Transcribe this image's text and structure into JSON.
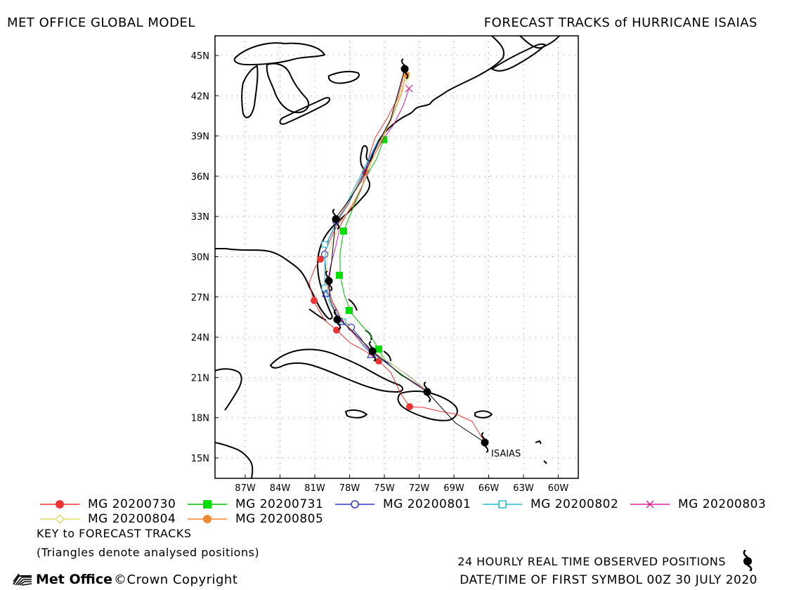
{
  "header": {
    "left_title": "MET OFFICE GLOBAL MODEL",
    "right_title": "FORECAST TRACKS of HURRICANE ISAIAS"
  },
  "map": {
    "lat_labels": [
      "45N",
      "42N",
      "39N",
      "36N",
      "33N",
      "30N",
      "27N",
      "24N",
      "21N",
      "18N",
      "15N"
    ],
    "lon_labels": [
      "87W",
      "84W",
      "81W",
      "78W",
      "75W",
      "72W",
      "69W",
      "66W",
      "63W",
      "60W"
    ],
    "storm_label": "ISAIAS",
    "colors": {
      "mg20200730": "#ee3333",
      "mg20200731": "#00bb00",
      "mg20200801": "#3333cc",
      "mg20200802": "#22bbcc",
      "mg20200803": "#dd2299",
      "mg20200804": "#dddd66",
      "mg20200805": "#ee8833",
      "observed": "#000000"
    }
  },
  "legend": {
    "items": [
      {
        "label": "MG 20200730",
        "symbol": "filled-circle",
        "color": "#ee3333"
      },
      {
        "label": "MG 20200731",
        "symbol": "filled-square",
        "color": "#00bb00"
      },
      {
        "label": "MG 20200801",
        "symbol": "open-circle",
        "color": "#3333cc"
      },
      {
        "label": "MG 20200802",
        "symbol": "open-square",
        "color": "#22bbcc"
      },
      {
        "label": "MG 20200803",
        "symbol": "cross",
        "color": "#dd2299"
      },
      {
        "label": "MG 20200804",
        "symbol": "open-diamond",
        "color": "#dddd66"
      },
      {
        "label": "MG 20200805",
        "symbol": "filled-circle",
        "color": "#ee8833"
      }
    ],
    "key_title": "KEY to FORECAST TRACKS",
    "key_note": "(Triangles denote analysed positions)"
  },
  "footer": {
    "observed_note": "24 HOURLY REAL TIME OBSERVED POSITIONS",
    "first_symbol": "DATE/TIME OF FIRST SYMBOL 00Z 30 JULY 2020",
    "logo_text": "Met Office",
    "copyright": "©Crown Copyright"
  }
}
